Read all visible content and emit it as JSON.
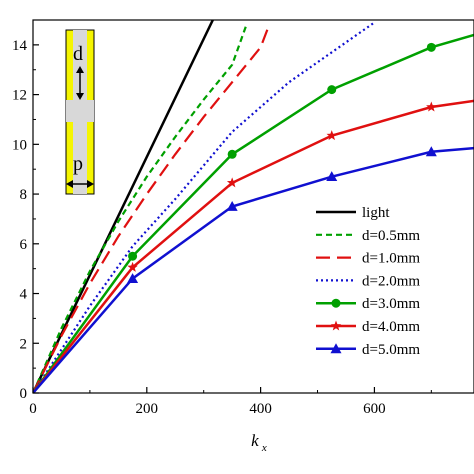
{
  "chart_data": {
    "type": "line",
    "xlabel": "k",
    "xlabel_subscript": "x",
    "ylabel": "",
    "xlim": [
      0,
      775
    ],
    "ylim": [
      0,
      15
    ],
    "xticks": [
      0,
      200,
      400,
      600
    ],
    "yticks": [
      0,
      2,
      4,
      6,
      8,
      10,
      12,
      14
    ],
    "grid": false,
    "legend_position": "right",
    "series": [
      {
        "name": "light",
        "color": "#000000",
        "style": "solid",
        "marker": "none",
        "x": [
          0,
          316
        ],
        "y": [
          0,
          15
        ]
      },
      {
        "name": "d=0.5mm",
        "color": "#00a000",
        "style": "dashed-short",
        "marker": "none",
        "x": [
          0,
          50,
          100,
          150,
          200,
          250,
          300,
          350,
          375
        ],
        "y": [
          0,
          2.6,
          4.9,
          6.9,
          8.7,
          10.3,
          11.8,
          13.2,
          14.8
        ]
      },
      {
        "name": "d=1.0mm",
        "color": "#e01010",
        "style": "dashed-long",
        "marker": "none",
        "x": [
          0,
          50,
          100,
          150,
          200,
          250,
          300,
          350,
          400,
          415
        ],
        "y": [
          0,
          2.3,
          4.4,
          6.3,
          8.0,
          9.6,
          11.1,
          12.5,
          13.9,
          14.8
        ]
      },
      {
        "name": "d=2.0mm",
        "color": "#1010d0",
        "style": "dotted",
        "marker": "none",
        "x": [
          0,
          100,
          175,
          250,
          350,
          450,
          525,
          600
        ],
        "y": [
          0,
          3.5,
          5.9,
          7.8,
          10.5,
          12.5,
          13.7,
          14.9
        ]
      },
      {
        "name": "d=3.0mm",
        "color": "#00a000",
        "style": "solid",
        "marker": "circle",
        "x": [
          0,
          175,
          350,
          525,
          700,
          775
        ],
        "y": [
          0,
          5.5,
          9.6,
          12.2,
          13.9,
          14.4
        ]
      },
      {
        "name": "d=4.0mm",
        "color": "#e01010",
        "style": "solid",
        "marker": "star",
        "x": [
          0,
          175,
          350,
          525,
          700,
          775
        ],
        "y": [
          0,
          5.05,
          8.45,
          10.35,
          11.5,
          11.75
        ]
      },
      {
        "name": "d=5.0mm",
        "color": "#1010d0",
        "style": "solid",
        "marker": "triangle",
        "x": [
          0,
          175,
          350,
          525,
          700,
          775
        ],
        "y": [
          0,
          4.6,
          7.5,
          8.7,
          9.7,
          9.85
        ]
      }
    ],
    "inset": {
      "label_d": "d",
      "label_p": "p",
      "background_color": "#f5f500",
      "shape_color": "#d8d8d8"
    }
  }
}
